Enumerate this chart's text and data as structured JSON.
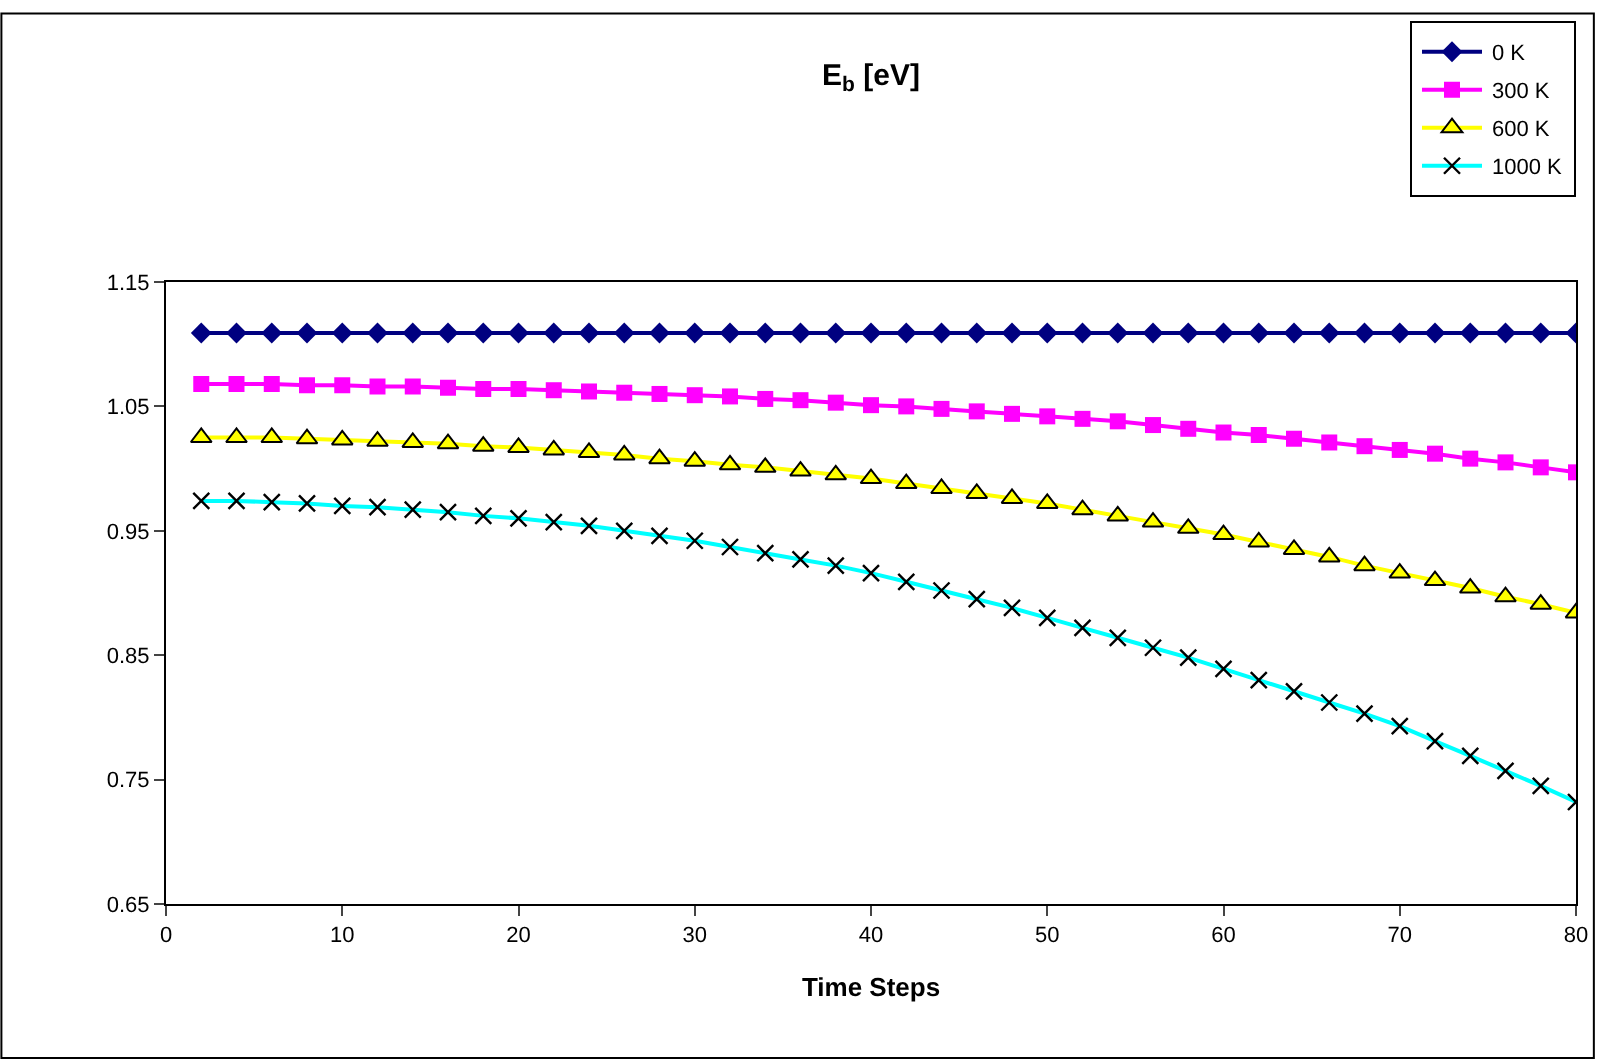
{
  "chart_data": {
    "type": "line",
    "title": "E$_{b}$ [eV]",
    "xlabel": "Time Steps",
    "x": [
      2,
      4,
      6,
      8,
      10,
      12,
      14,
      16,
      18,
      20,
      22,
      24,
      26,
      28,
      30,
      32,
      34,
      36,
      38,
      40,
      42,
      44,
      46,
      48,
      50,
      52,
      54,
      56,
      58,
      60,
      62,
      64,
      66,
      68,
      70,
      72,
      74,
      76,
      78,
      80
    ],
    "series": [
      {
        "name": "0 K",
        "color": "#000080",
        "marker": "diamond",
        "values": [
          1.109,
          1.109,
          1.109,
          1.109,
          1.109,
          1.109,
          1.109,
          1.109,
          1.109,
          1.109,
          1.109,
          1.109,
          1.109,
          1.109,
          1.109,
          1.109,
          1.109,
          1.109,
          1.109,
          1.109,
          1.109,
          1.109,
          1.109,
          1.109,
          1.109,
          1.109,
          1.109,
          1.109,
          1.109,
          1.109,
          1.109,
          1.109,
          1.109,
          1.109,
          1.109,
          1.109,
          1.109,
          1.109,
          1.109,
          1.109
        ]
      },
      {
        "name": "300 K",
        "color": "#ff00ff",
        "marker": "square",
        "values": [
          1.068,
          1.068,
          1.068,
          1.067,
          1.067,
          1.066,
          1.066,
          1.065,
          1.064,
          1.064,
          1.063,
          1.062,
          1.061,
          1.06,
          1.059,
          1.058,
          1.056,
          1.055,
          1.053,
          1.051,
          1.05,
          1.048,
          1.046,
          1.044,
          1.042,
          1.04,
          1.038,
          1.035,
          1.032,
          1.029,
          1.027,
          1.024,
          1.021,
          1.018,
          1.015,
          1.012,
          1.008,
          1.005,
          1.001,
          0.997
        ]
      },
      {
        "name": "600 K",
        "color": "#ffff00",
        "marker": "triangle",
        "values": [
          1.025,
          1.025,
          1.025,
          1.024,
          1.023,
          1.022,
          1.021,
          1.02,
          1.018,
          1.017,
          1.015,
          1.013,
          1.011,
          1.008,
          1.006,
          1.003,
          1.001,
          0.998,
          0.995,
          0.992,
          0.988,
          0.984,
          0.98,
          0.976,
          0.972,
          0.967,
          0.962,
          0.957,
          0.952,
          0.947,
          0.941,
          0.935,
          0.929,
          0.922,
          0.916,
          0.91,
          0.904,
          0.897,
          0.891,
          0.884
        ]
      },
      {
        "name": "1000 K",
        "color": "#00ffff",
        "marker": "cross",
        "values": [
          0.974,
          0.974,
          0.973,
          0.972,
          0.97,
          0.969,
          0.967,
          0.965,
          0.962,
          0.96,
          0.957,
          0.954,
          0.95,
          0.946,
          0.942,
          0.937,
          0.932,
          0.927,
          0.922,
          0.916,
          0.909,
          0.902,
          0.895,
          0.888,
          0.88,
          0.872,
          0.864,
          0.856,
          0.848,
          0.839,
          0.83,
          0.821,
          0.812,
          0.803,
          0.793,
          0.781,
          0.769,
          0.757,
          0.745,
          0.732
        ]
      }
    ],
    "xlim": [
      0,
      80
    ],
    "xticks": [
      0,
      10,
      20,
      30,
      40,
      50,
      60,
      70,
      80
    ],
    "ylim": [
      0.65,
      1.15
    ],
    "yticks": [
      0.65,
      0.75,
      0.85,
      0.95,
      1.05,
      1.15
    ],
    "grid": false,
    "legend": "top right",
    "line_style": "solid"
  }
}
